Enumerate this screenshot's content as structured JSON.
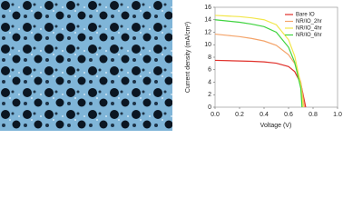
{
  "chart_data": {
    "type": "line",
    "xlabel": "Voltage (V)",
    "ylabel": "Current density (mA/cm²)",
    "xlim": [
      0,
      1
    ],
    "xticks": [
      {
        "value": 0,
        "label": "0.0"
      },
      0.2,
      0.4,
      0.6,
      0.8,
      {
        "value": 1,
        "label": "1.0"
      }
    ],
    "ylim": [
      0,
      16
    ],
    "yticks": [
      0,
      2,
      4,
      6,
      8,
      10,
      12,
      14,
      16
    ],
    "legend": "top-right",
    "series": [
      {
        "name": "Bare IO",
        "color": "#e0302a",
        "x": [
          0,
          0.1,
          0.2,
          0.3,
          0.4,
          0.5,
          0.6,
          0.65,
          0.7,
          0.74
        ],
        "values": [
          7.5,
          7.45,
          7.4,
          7.35,
          7.25,
          7.05,
          6.5,
          5.7,
          3.8,
          0
        ]
      },
      {
        "name": "NR/IO_2hr",
        "color": "#f4a46a",
        "x": [
          0,
          0.1,
          0.2,
          0.3,
          0.4,
          0.5,
          0.6,
          0.65,
          0.7,
          0.73
        ],
        "values": [
          11.7,
          11.5,
          11.3,
          11.0,
          10.6,
          9.9,
          8.4,
          7.0,
          4.0,
          0
        ]
      },
      {
        "name": "NR/IO_4hr",
        "color": "#f2e64a",
        "x": [
          0,
          0.1,
          0.2,
          0.3,
          0.4,
          0.5,
          0.6,
          0.65,
          0.7,
          0.72
        ],
        "values": [
          14.7,
          14.6,
          14.5,
          14.3,
          14.0,
          13.2,
          10.8,
          8.2,
          3.6,
          0
        ]
      },
      {
        "name": "NR/IO_6hr",
        "color": "#3fd33f",
        "x": [
          0,
          0.1,
          0.2,
          0.3,
          0.4,
          0.5,
          0.6,
          0.65,
          0.7,
          0.71
        ],
        "values": [
          14.0,
          13.8,
          13.6,
          13.3,
          12.9,
          12.0,
          9.6,
          7.2,
          3.0,
          0
        ]
      }
    ]
  }
}
